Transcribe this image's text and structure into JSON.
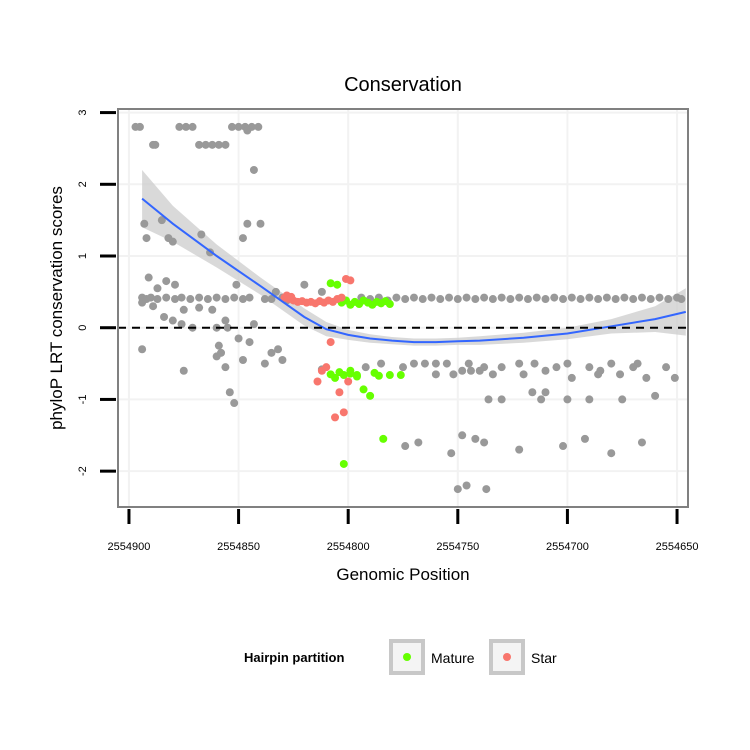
{
  "chart_data": {
    "type": "scatter",
    "title": "Conservation",
    "xlabel": "Genomic Position",
    "ylabel": "phyloP LRT conservation scores",
    "xlim": [
      2554905,
      2554645
    ],
    "ylim": [
      -2.5,
      3.05
    ],
    "x_reversed": true,
    "x_ticks": [
      2554900,
      2554850,
      2554800,
      2554750,
      2554700,
      2554650
    ],
    "x_tick_labels": [
      "2554900",
      "2554850",
      "2554800",
      "2554750",
      "2554700",
      "2554650"
    ],
    "y_ticks": [
      -2,
      -1,
      0,
      1,
      2,
      3
    ],
    "y_tick_labels": [
      "-2",
      "-1",
      "0",
      "1",
      "2",
      "3"
    ],
    "reference_line": 0,
    "legend": {
      "title": "Hairpin partition",
      "position": "bottom",
      "entries": [
        {
          "label": "Mature",
          "color": "#66ff00"
        },
        {
          "label": "Star",
          "color": "#f8766d"
        }
      ]
    },
    "colors": {
      "Other": "#999999",
      "Mature": "#66ff00",
      "Star": "#f8766d",
      "smooth": "#3366ff",
      "band": "#cccccc"
    },
    "smooth": {
      "x": [
        2554894,
        2554880,
        2554860,
        2554840,
        2554820,
        2554810,
        2554800,
        2554790,
        2554780,
        2554770,
        2554760,
        2554750,
        2554740,
        2554720,
        2554700,
        2554680,
        2554660,
        2554646
      ],
      "y": [
        1.8,
        1.45,
        1.0,
        0.58,
        0.15,
        -0.02,
        -0.1,
        -0.15,
        -0.18,
        -0.2,
        -0.2,
        -0.19,
        -0.18,
        -0.14,
        -0.08,
        0.02,
        0.12,
        0.22
      ],
      "upper": [
        2.2,
        1.7,
        1.16,
        0.7,
        0.27,
        0.08,
        -0.03,
        -0.09,
        -0.13,
        -0.15,
        -0.15,
        -0.14,
        -0.12,
        -0.07,
        0.0,
        0.12,
        0.3,
        0.55
      ],
      "lower": [
        1.4,
        1.2,
        0.84,
        0.46,
        0.03,
        -0.12,
        -0.17,
        -0.21,
        -0.23,
        -0.25,
        -0.25,
        -0.24,
        -0.24,
        -0.21,
        -0.16,
        -0.08,
        -0.06,
        -0.11
      ]
    },
    "series": [
      {
        "name": "Other",
        "x": [
          2554897,
          2554895,
          2554893,
          2554892,
          2554889,
          2554888,
          2554885,
          2554882,
          2554880,
          2554877,
          2554874,
          2554871,
          2554868,
          2554865,
          2554862,
          2554859,
          2554856,
          2554853,
          2554850,
          2554847,
          2554844,
          2554841,
          2554894,
          2554889,
          2554884,
          2554880,
          2554876,
          2554868,
          2554862,
          2554856,
          2554894,
          2554891,
          2554887,
          2554883,
          2554879,
          2554875,
          2554871,
          2554867,
          2554863,
          2554859,
          2554855,
          2554851,
          2554848,
          2554846,
          2554843,
          2554894,
          2554892,
          2554890,
          2554887,
          2554883,
          2554879,
          2554876,
          2554872,
          2554868,
          2554864,
          2554860,
          2554856,
          2554852,
          2554848,
          2554845,
          2554846,
          2554843,
          2554840,
          2554838,
          2554835,
          2554833,
          2554830,
          2554828,
          2554826,
          2554820,
          2554812,
          2554794,
          2554790,
          2554786,
          2554782,
          2554778,
          2554774,
          2554770,
          2554766,
          2554762,
          2554758,
          2554754,
          2554750,
          2554746,
          2554742,
          2554738,
          2554734,
          2554730,
          2554726,
          2554722,
          2554718,
          2554714,
          2554710,
          2554706,
          2554702,
          2554698,
          2554694,
          2554690,
          2554686,
          2554682,
          2554678,
          2554674,
          2554670,
          2554666,
          2554662,
          2554658,
          2554654,
          2554650,
          2554648,
          2554770,
          2554760,
          2554745,
          2554730,
          2554715,
          2554700,
          2554690,
          2554680,
          2554668,
          2554655,
          2554792,
          2554785,
          2554775,
          2554765,
          2554755,
          2554738,
          2554722,
          2554705,
          2554685,
          2554670,
          2554748,
          2554740,
          2554760,
          2554752,
          2554744,
          2554734,
          2554720,
          2554710,
          2554698,
          2554686,
          2554676,
          2554664,
          2554651,
          2554736,
          2554712,
          2554690,
          2554675,
          2554660,
          2554774,
          2554768,
          2554748,
          2554738,
          2554722,
          2554702,
          2554692,
          2554680,
          2554666,
          2554730,
          2554700,
          2554746,
          2554737,
          2554750,
          2554753,
          2554742,
          2554716,
          2554710
        ],
        "y": [
          2.8,
          2.8,
          1.45,
          1.25,
          2.55,
          2.55,
          1.5,
          1.25,
          1.2,
          2.8,
          2.8,
          2.8,
          2.55,
          2.55,
          2.55,
          2.55,
          2.55,
          2.8,
          2.8,
          2.8,
          2.8,
          2.8,
          0.35,
          0.3,
          0.15,
          0.1,
          0.05,
          0.28,
          0.25,
          0.1,
          -0.3,
          0.7,
          0.55,
          0.65,
          0.6,
          0.25,
          0.0,
          1.3,
          1.05,
          -0.25,
          0.0,
          0.6,
          1.25,
          1.45,
          0.05,
          0.42,
          0.4,
          0.42,
          0.4,
          0.42,
          0.4,
          0.42,
          0.4,
          0.42,
          0.4,
          0.42,
          0.4,
          0.42,
          0.4,
          0.42,
          2.75,
          2.2,
          1.45,
          0.4,
          0.4,
          0.5,
          0.42,
          0.38,
          0.42,
          0.6,
          0.5,
          0.42,
          0.4,
          0.42,
          0.38,
          0.42,
          0.4,
          0.42,
          0.4,
          0.42,
          0.4,
          0.42,
          0.4,
          0.42,
          0.4,
          0.42,
          0.4,
          0.42,
          0.4,
          0.42,
          0.4,
          0.42,
          0.4,
          0.42,
          0.4,
          0.42,
          0.4,
          0.42,
          0.4,
          0.42,
          0.4,
          0.42,
          0.4,
          0.42,
          0.4,
          0.42,
          0.4,
          0.42,
          0.4,
          -0.5,
          -0.5,
          -0.5,
          -0.55,
          -0.5,
          -0.5,
          -0.55,
          -0.5,
          -0.5,
          -0.55,
          -0.55,
          -0.5,
          -0.55,
          -0.5,
          -0.5,
          -0.55,
          -0.5,
          -0.55,
          -0.6,
          -0.55,
          -0.6,
          -0.6,
          -0.65,
          -0.65,
          -0.6,
          -0.65,
          -0.65,
          -0.6,
          -0.7,
          -0.65,
          -0.65,
          -0.7,
          -0.7,
          -1.0,
          -1.0,
          -1.0,
          -1.0,
          -0.95,
          -1.65,
          -1.6,
          -1.5,
          -1.6,
          -1.7,
          -1.65,
          -1.55,
          -1.75,
          -1.6,
          -1.0,
          -1.0,
          -2.2,
          -2.25,
          -2.25,
          -1.75,
          -1.55,
          -0.9,
          -0.9
        ],
        "extra": [
          [
            2554860,
            -0.4
          ],
          [
            2554858,
            -0.35
          ],
          [
            2554856,
            -0.55
          ],
          [
            2554854,
            -0.9
          ],
          [
            2554852,
            -1.05
          ],
          [
            2554850,
            -0.15
          ],
          [
            2554848,
            -0.45
          ],
          [
            2554845,
            -0.2
          ],
          [
            2554875,
            -0.6
          ],
          [
            2554860,
            0.0
          ],
          [
            2554838,
            -0.5
          ],
          [
            2554835,
            -0.35
          ],
          [
            2554832,
            -0.3
          ],
          [
            2554830,
            -0.45
          ],
          [
            2554812,
            -0.58
          ]
        ]
      },
      {
        "name": "Mature",
        "x": [
          2554808,
          2554805,
          2554803,
          2554801,
          2554799,
          2554797,
          2554795,
          2554793,
          2554791,
          2554789,
          2554787,
          2554785,
          2554783,
          2554781,
          2554808,
          2554806,
          2554804,
          2554802,
          2554799,
          2554796,
          2554793,
          2554790,
          2554788,
          2554786,
          2554784,
          2554781,
          2554802,
          2554799,
          2554796,
          2554776
        ],
        "y": [
          0.62,
          0.6,
          0.35,
          0.38,
          0.32,
          0.36,
          0.33,
          0.38,
          0.35,
          0.32,
          0.36,
          0.34,
          0.37,
          0.33,
          -0.65,
          -0.7,
          -0.62,
          -0.66,
          -0.64,
          -0.68,
          -0.86,
          -0.95,
          -0.63,
          -0.67,
          -1.55,
          -0.66,
          -1.9,
          -0.6,
          -0.66,
          -0.66
        ]
      },
      {
        "name": "Star",
        "x": [
          2554829,
          2554827,
          2554825,
          2554823,
          2554821,
          2554819,
          2554817,
          2554815,
          2554813,
          2554811,
          2554809,
          2554807,
          2554805,
          2554803,
          2554801,
          2554799,
          2554814,
          2554812,
          2554810,
          2554808,
          2554806,
          2554804,
          2554802,
          2554800,
          2554828,
          2554826
        ],
        "y": [
          0.42,
          0.4,
          0.38,
          0.36,
          0.37,
          0.35,
          0.36,
          0.34,
          0.37,
          0.35,
          0.38,
          0.36,
          0.4,
          0.42,
          0.68,
          0.66,
          -0.75,
          -0.6,
          -0.55,
          -0.2,
          -1.25,
          -0.9,
          -1.18,
          -0.75,
          0.45,
          0.43
        ]
      }
    ]
  }
}
